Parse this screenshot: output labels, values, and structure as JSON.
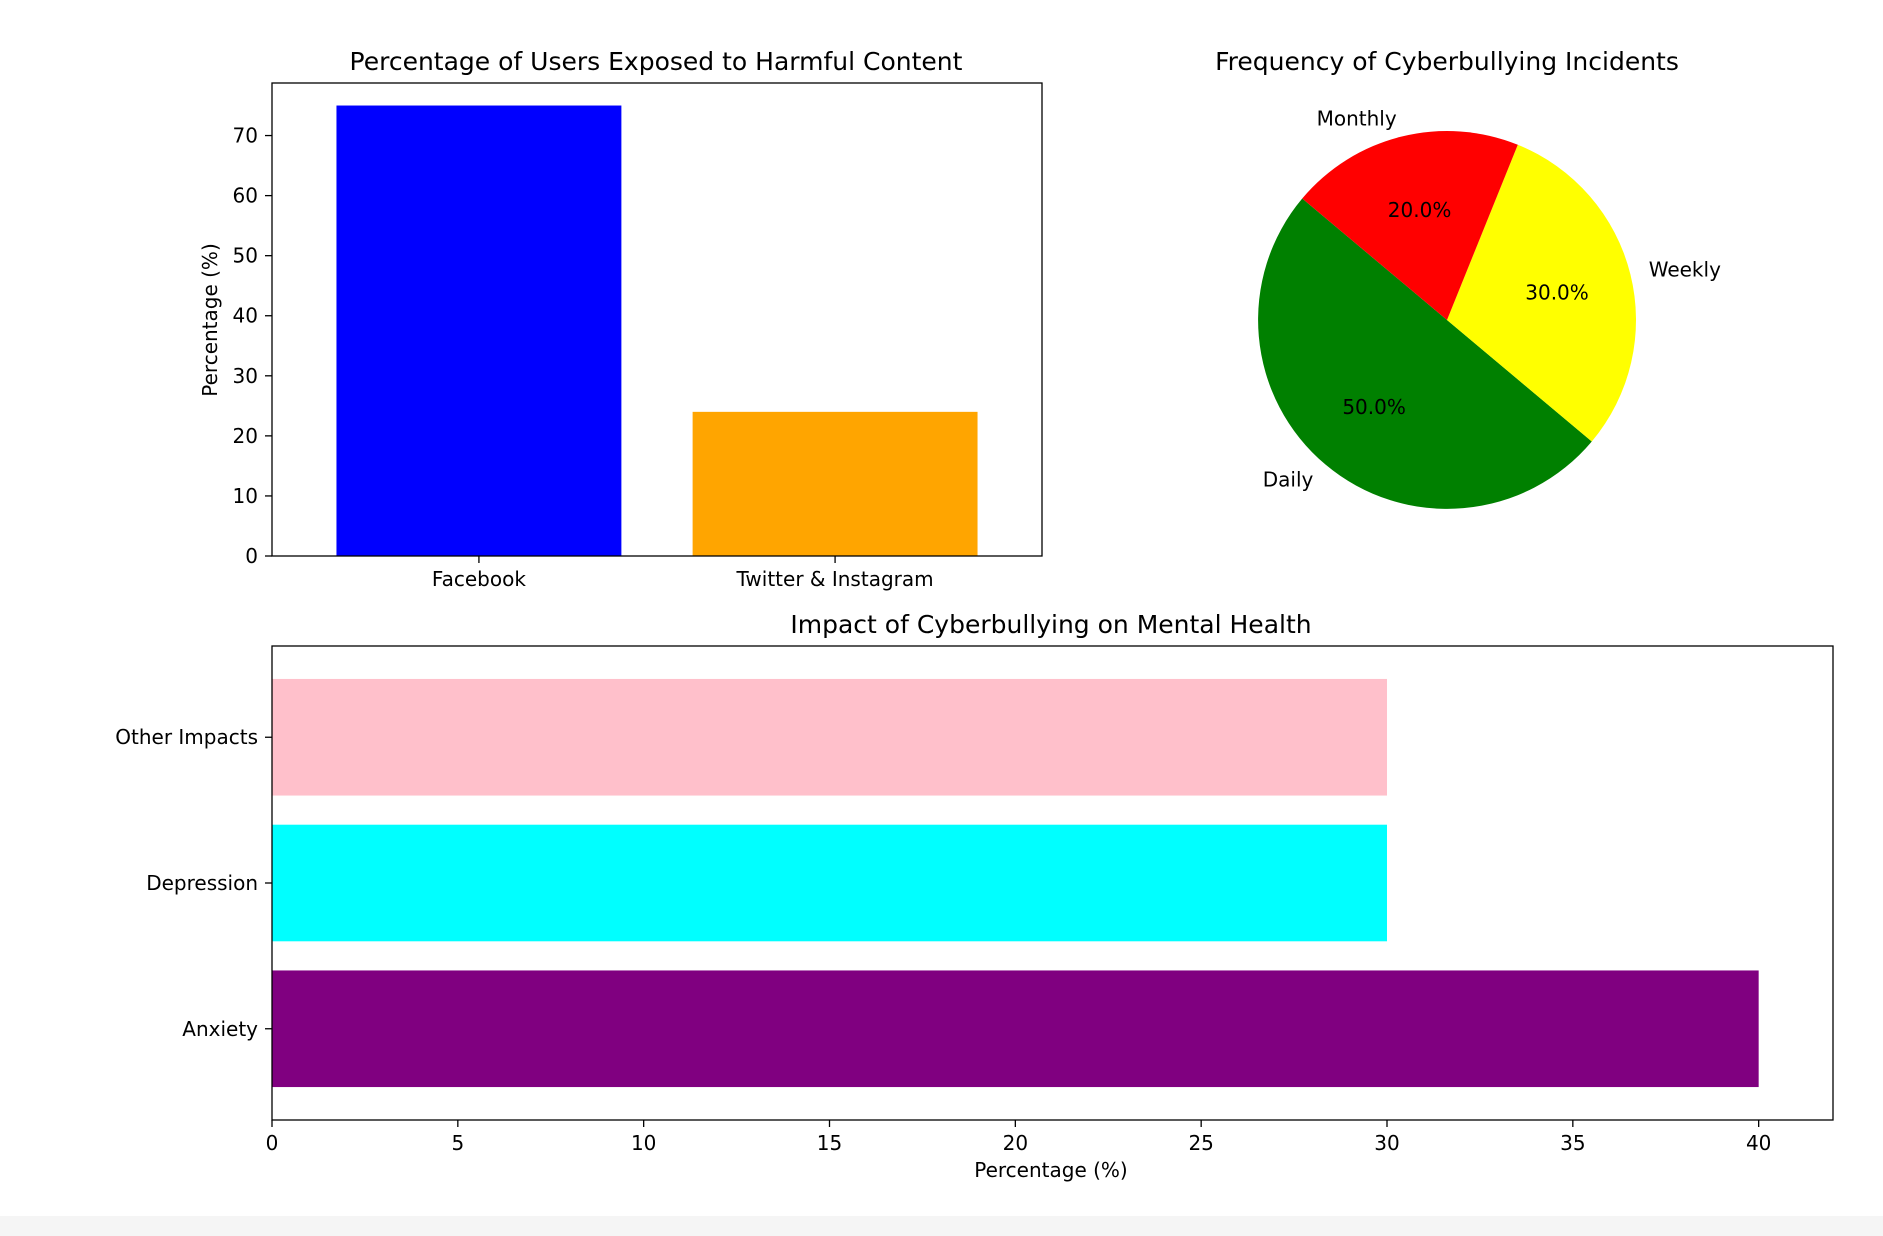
{
  "chart_data": [
    {
      "type": "bar",
      "title": "Percentage of Users Exposed to Harmful Content",
      "categories": [
        "Facebook",
        "Twitter & Instagram"
      ],
      "values": [
        75,
        24
      ],
      "colors": [
        "#0000ff",
        "#ffa500"
      ],
      "xlabel": "",
      "ylabel": "Percentage (%)",
      "ylim": [
        0,
        78.75
      ],
      "yticks": [
        0,
        10,
        20,
        30,
        40,
        50,
        60,
        70
      ],
      "ytick_labels": [
        "0",
        "10",
        "20",
        "30",
        "40",
        "50",
        "60",
        "70"
      ],
      "grid": false
    },
    {
      "type": "pie",
      "title": "Frequency of Cyberbullying Incidents",
      "labels": [
        "Daily",
        "Weekly",
        "Monthly"
      ],
      "values": [
        50,
        30,
        20
      ],
      "autopct_labels": [
        "50.0%",
        "30.0%",
        "20.0%"
      ],
      "colors": [
        "#008000",
        "#ffff00",
        "#ff0000"
      ],
      "start_angle_deg": 140
    },
    {
      "type": "bar",
      "orientation": "horizontal",
      "title": "Impact of Cyberbullying on Mental Health",
      "categories": [
        "Anxiety",
        "Depression",
        "Other Impacts"
      ],
      "values": [
        40,
        30,
        30
      ],
      "colors": [
        "#800080",
        "#00ffff",
        "#ffc0cb"
      ],
      "xlabel": "Percentage (%)",
      "ylabel": "",
      "xlim": [
        0,
        42
      ],
      "xticks": [
        0,
        5,
        10,
        15,
        20,
        25,
        30,
        35,
        40
      ],
      "xtick_labels": [
        "0",
        "5",
        "10",
        "15",
        "20",
        "25",
        "30",
        "35",
        "40"
      ],
      "grid": false
    }
  ]
}
